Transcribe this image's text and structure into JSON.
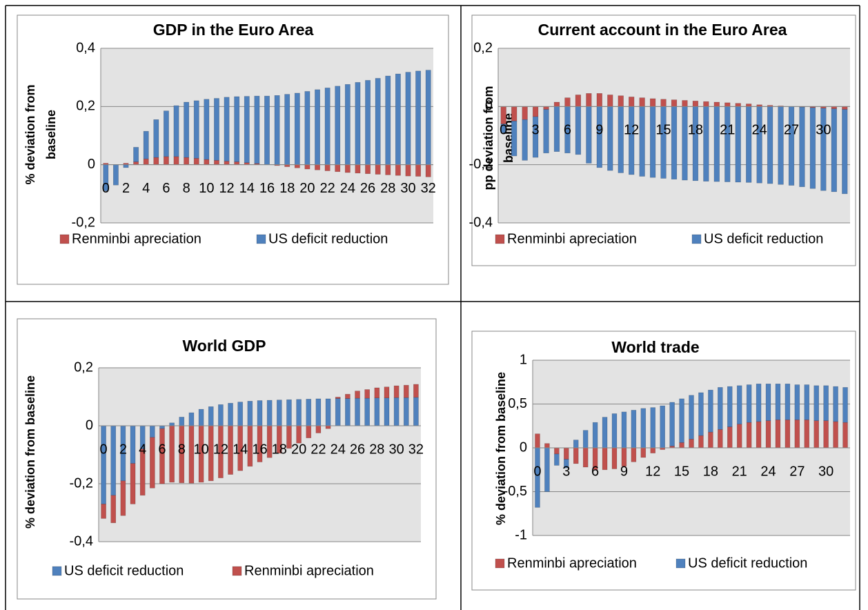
{
  "chart_data": [
    {
      "type": "bar",
      "stacked": true,
      "grid": true,
      "title": "GDP in the Euro Area",
      "y_label": [
        "% deviation from",
        "baseline"
      ],
      "categories": [
        "0",
        null,
        "2",
        null,
        "4",
        null,
        "6",
        null,
        "8",
        null,
        "10",
        null,
        "12",
        null,
        "14",
        null,
        "16",
        null,
        "18",
        null,
        "20",
        null,
        "22",
        null,
        "24",
        null,
        "26",
        null,
        "28",
        null,
        "30",
        null,
        "32"
      ],
      "ylim": [
        -0.2,
        0.4
      ],
      "yticks": [
        {
          "value": 0.4,
          "label": "0,4"
        },
        {
          "value": 0.2,
          "label": "0,2"
        },
        0,
        {
          "value": -0.2,
          "label": "-0,2"
        }
      ],
      "series": [
        {
          "name": "Renminbi apreciation",
          "color": "#c0504d",
          "values": [
            0.005,
            0,
            0.005,
            0.01,
            0.02,
            0.025,
            0.028,
            0.028,
            0.025,
            0.022,
            0.018,
            0.015,
            0.012,
            0.01,
            0.007,
            0.004,
            0,
            -0.003,
            -0.007,
            -0.011,
            -0.015,
            -0.018,
            -0.021,
            -0.024,
            -0.027,
            -0.029,
            -0.031,
            -0.033,
            -0.035,
            -0.037,
            -0.039,
            -0.04,
            -0.042
          ]
        },
        {
          "name": "US deficit reduction",
          "color": "#4f81bd",
          "values": [
            -0.09,
            -0.07,
            -0.01,
            0.05,
            0.095,
            0.13,
            0.157,
            0.175,
            0.19,
            0.198,
            0.207,
            0.213,
            0.22,
            0.224,
            0.228,
            0.232,
            0.236,
            0.238,
            0.242,
            0.246,
            0.252,
            0.258,
            0.264,
            0.27,
            0.276,
            0.283,
            0.29,
            0.297,
            0.305,
            0.312,
            0.318,
            0.322,
            0.325
          ]
        }
      ]
    },
    {
      "type": "bar",
      "stacked": true,
      "grid": true,
      "title": "Current account in the Euro Area",
      "y_label": [
        "pp deviation from",
        "baseline"
      ],
      "categories": [
        "0",
        null,
        null,
        "3",
        null,
        null,
        "6",
        null,
        null,
        "9",
        null,
        null,
        "12",
        null,
        null,
        "15",
        null,
        null,
        "18",
        null,
        null,
        "21",
        null,
        null,
        "24",
        null,
        null,
        "27",
        null,
        null,
        "30",
        null,
        null
      ],
      "ylim": [
        -0.4,
        0.2
      ],
      "yticks": [
        {
          "value": 0.2,
          "label": "0,2"
        },
        0,
        {
          "value": -0.2,
          "label": "-0,2"
        },
        {
          "value": -0.4,
          "label": "-0,4"
        }
      ],
      "series": [
        {
          "name": "Renminbi apreciation",
          "color": "#c0504d",
          "values": [
            -0.06,
            -0.05,
            -0.045,
            -0.035,
            -0.01,
            0.015,
            0.03,
            0.04,
            0.045,
            0.045,
            0.04,
            0.037,
            0.033,
            0.03,
            0.027,
            0.025,
            0.023,
            0.021,
            0.019,
            0.017,
            0.015,
            0.013,
            0.011,
            0.009,
            0.006,
            0.004,
            0.002,
            0,
            -0.002,
            -0.004,
            -0.006,
            -0.008,
            -0.01
          ]
        },
        {
          "name": "US deficit reduction",
          "color": "#4f81bd",
          "values": [
            -0.03,
            -0.12,
            -0.14,
            -0.14,
            -0.15,
            -0.155,
            -0.16,
            -0.165,
            -0.195,
            -0.21,
            -0.22,
            -0.228,
            -0.234,
            -0.24,
            -0.244,
            -0.247,
            -0.25,
            -0.253,
            -0.255,
            -0.257,
            -0.258,
            -0.259,
            -0.26,
            -0.261,
            -0.263,
            -0.265,
            -0.268,
            -0.271,
            -0.274,
            -0.278,
            -0.283,
            -0.285,
            -0.29
          ]
        }
      ]
    },
    {
      "type": "bar",
      "stacked": true,
      "grid": true,
      "title": "World GDP",
      "y_label": [
        "% deviation from baseline"
      ],
      "categories": [
        "0",
        null,
        "2",
        null,
        "4",
        null,
        "6",
        null,
        "8",
        null,
        "10",
        null,
        "12",
        null,
        "14",
        null,
        "16",
        null,
        "18",
        null,
        "20",
        null,
        "22",
        null,
        "24",
        null,
        "26",
        null,
        "28",
        null,
        "30",
        null,
        "32"
      ],
      "ylim": [
        -0.4,
        0.2
      ],
      "yticks": [
        {
          "value": 0.2,
          "label": "0,2"
        },
        0,
        {
          "value": -0.2,
          "label": "-0,2"
        },
        {
          "value": -0.4,
          "label": "-0,4"
        }
      ],
      "series": [
        {
          "name": "US deficit reduction",
          "color": "#4f81bd",
          "values": [
            -0.27,
            -0.24,
            -0.19,
            -0.13,
            -0.08,
            -0.04,
            -0.01,
            0.01,
            0.03,
            0.045,
            0.057,
            0.066,
            0.073,
            0.078,
            0.082,
            0.085,
            0.087,
            0.088,
            0.089,
            0.09,
            0.091,
            0.092,
            0.093,
            0.093,
            0.094,
            0.094,
            0.095,
            0.095,
            0.096,
            0.096,
            0.097,
            0.097,
            0.098
          ]
        },
        {
          "name": "Renminbi apreciation",
          "color": "#c0504d",
          "values": [
            -0.05,
            -0.095,
            -0.12,
            -0.14,
            -0.16,
            -0.175,
            -0.19,
            -0.195,
            -0.197,
            -0.198,
            -0.195,
            -0.19,
            -0.18,
            -0.168,
            -0.155,
            -0.14,
            -0.125,
            -0.11,
            -0.095,
            -0.078,
            -0.06,
            -0.042,
            -0.025,
            -0.01,
            0.005,
            0.015,
            0.025,
            0.03,
            0.035,
            0.038,
            0.041,
            0.043,
            0.045
          ]
        }
      ]
    },
    {
      "type": "bar",
      "stacked": true,
      "grid": true,
      "title": "World trade",
      "y_label": [
        "% deviation from baseline"
      ],
      "categories": [
        "0",
        null,
        null,
        "3",
        null,
        null,
        "6",
        null,
        null,
        "9",
        null,
        null,
        "12",
        null,
        null,
        "15",
        null,
        null,
        "18",
        null,
        null,
        "21",
        null,
        null,
        "24",
        null,
        null,
        "27",
        null,
        null,
        "30",
        null,
        null
      ],
      "ylim": [
        -1,
        1
      ],
      "yticks": [
        1,
        {
          "value": 0.5,
          "label": "0,5"
        },
        0,
        {
          "value": -0.5,
          "label": "-0,5"
        },
        -1
      ],
      "series": [
        {
          "name": "Renminbi apreciation",
          "color": "#c0504d",
          "values": [
            0.16,
            0.05,
            -0.07,
            -0.13,
            -0.18,
            -0.22,
            -0.25,
            -0.25,
            -0.24,
            -0.21,
            -0.16,
            -0.11,
            -0.06,
            -0.02,
            0.02,
            0.06,
            0.1,
            0.14,
            0.18,
            0.21,
            0.24,
            0.27,
            0.29,
            0.3,
            0.31,
            0.32,
            0.32,
            0.32,
            0.32,
            0.31,
            0.31,
            0.3,
            0.29
          ]
        },
        {
          "name": "US deficit reduction",
          "color": "#4f81bd",
          "values": [
            -0.68,
            -0.5,
            -0.13,
            -0.1,
            0.09,
            0.2,
            0.29,
            0.35,
            0.39,
            0.41,
            0.43,
            0.45,
            0.46,
            0.48,
            0.5,
            0.5,
            0.5,
            0.49,
            0.48,
            0.48,
            0.46,
            0.44,
            0.43,
            0.43,
            0.42,
            0.41,
            0.41,
            0.4,
            0.4,
            0.4,
            0.4,
            0.4,
            0.4
          ]
        }
      ]
    }
  ]
}
